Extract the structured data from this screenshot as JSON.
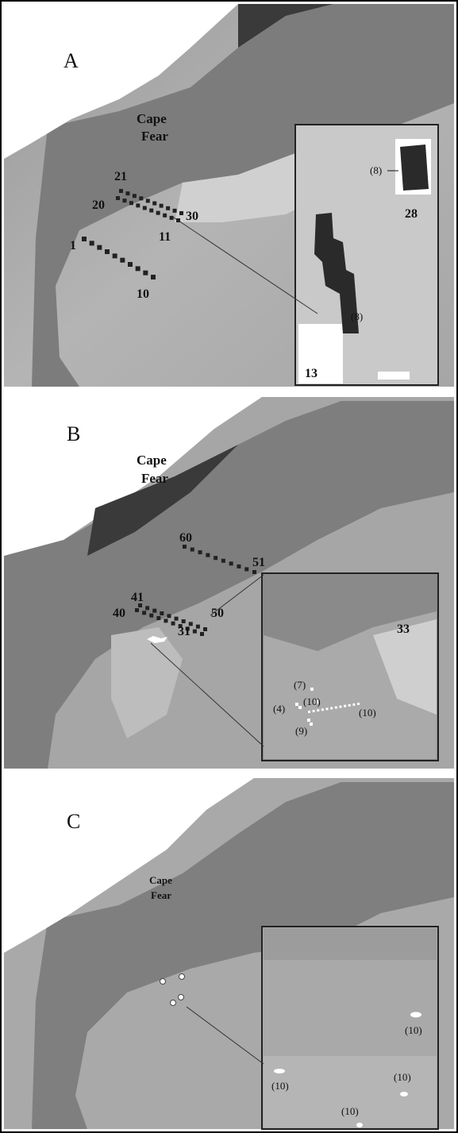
{
  "panels": [
    {
      "label": "A",
      "place": [
        "Cape",
        "Fear"
      ],
      "stations": [
        "21",
        "20",
        "30",
        "11",
        "1",
        "10"
      ],
      "inset": [
        "(8)",
        "28",
        "(8)",
        "13"
      ]
    },
    {
      "label": "B",
      "place": [
        "Cape",
        "Fear"
      ],
      "stations": [
        "60",
        "51",
        "41",
        "40",
        "50",
        "31"
      ],
      "inset": [
        "33",
        "(7)",
        "(10)",
        "(4)",
        "(10)",
        "(9)"
      ]
    },
    {
      "label": "C",
      "place": [
        "Cape",
        "Fear"
      ],
      "inset": [
        "(10)",
        "(10)",
        "(10)",
        "(10)"
      ]
    }
  ]
}
